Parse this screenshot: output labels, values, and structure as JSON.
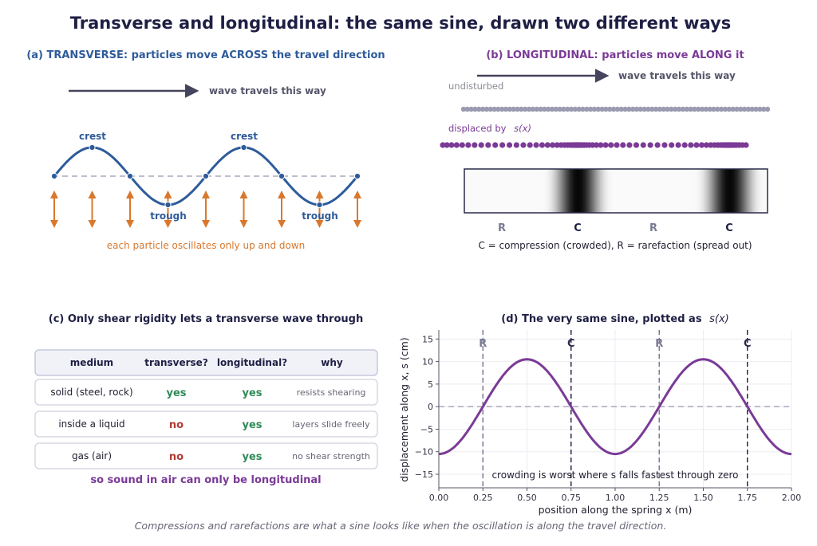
{
  "title": "Transverse and longitudinal:  the same sine, drawn two different ways",
  "footer": "Compressions and rarefactions are what a sine looks like when the oscillation is along the travel direction.",
  "colors": {
    "navy": "#1f1f45",
    "blue": "#2e5b9a",
    "purple": "#7a3a96",
    "orange": "#d9782d",
    "grey": "#9a9ab0",
    "green": "#2e8a57",
    "red": "#b23b33",
    "muted": "#666677"
  },
  "panel_a": {
    "heading": "(a)  TRANSVERSE:  particles move ACROSS the travel direction",
    "arrow_label": "wave travels this way",
    "crest_label": "crest",
    "trough_label": "trough",
    "caption": "each particle oscillates only up and down"
  },
  "panel_b": {
    "heading": "(b)  LONGITUDINAL:  particles move ALONG it",
    "arrow_label": "wave travels this way",
    "undisturbed_label": "undisturbed",
    "displaced_label": "displaced by",
    "displaced_symbol": "s(x)",
    "band_labels": [
      "R",
      "C",
      "R",
      "C"
    ],
    "caption": "C = compression (crowded),   R = rarefaction (spread out)"
  },
  "panel_c": {
    "heading": "(c)  Only shear rigidity lets a transverse wave through",
    "headers": [
      "medium",
      "transverse?",
      "longitudinal?",
      "why"
    ],
    "rows": [
      {
        "medium": "solid  (steel, rock)",
        "transverse": "yes",
        "longitudinal": "yes",
        "why": "resists shearing"
      },
      {
        "medium": "inside a liquid",
        "transverse": "no",
        "longitudinal": "yes",
        "why": "layers slide freely"
      },
      {
        "medium": "gas  (air)",
        "transverse": "no",
        "longitudinal": "yes",
        "why": "no shear strength"
      }
    ],
    "conclusion": "so sound in air can only be longitudinal"
  },
  "chart_data": {
    "type": "line",
    "title": "(d)  The very same sine, plotted as",
    "title_symbol": "s(x)",
    "xlabel": "position along the spring  x  (m)",
    "ylabel": "displacement along x,   s  (cm)",
    "xlim": [
      0,
      2
    ],
    "ylim": [
      -18,
      17
    ],
    "xticks": [
      "0.00",
      "0.25",
      "0.50",
      "0.75",
      "1.00",
      "1.25",
      "1.50",
      "1.75",
      "2.00"
    ],
    "yticks": [
      "15",
      "10",
      "5",
      "0",
      "−5",
      "−10",
      "−15"
    ],
    "grid": true,
    "series": [
      {
        "amplitude": 10.5,
        "wavelength": 1.0,
        "x": [
          0,
          0.25,
          0.5,
          0.75,
          1.0,
          1.25,
          1.5,
          1.75,
          2.0
        ],
        "y": [
          -10.5,
          0,
          10.5,
          0,
          -10.5,
          0,
          10.5,
          0,
          -10.5
        ]
      }
    ],
    "markers": [
      {
        "x": 0.25,
        "label": "R"
      },
      {
        "x": 0.75,
        "label": "C"
      },
      {
        "x": 1.25,
        "label": "R"
      },
      {
        "x": 1.75,
        "label": "C"
      }
    ],
    "annotation": "crowding is worst where s falls fastest through zero"
  }
}
